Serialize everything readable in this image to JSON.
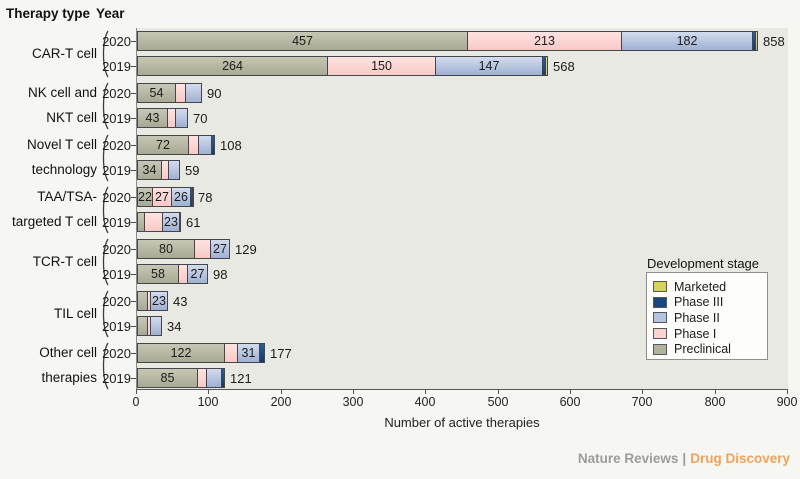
{
  "header": {
    "therapy_type_label": "Therapy type",
    "year_label": "Year"
  },
  "footer": {
    "journal": "Nature Reviews",
    "separator": "|",
    "publication": "Drug Discovery"
  },
  "colors": {
    "page_bg": "#f6f6f2",
    "plot_bg": "#e9e9e4",
    "axis": "#555555",
    "footer_journal": "#9c9c9c",
    "footer_publication": "#f1a35a"
  },
  "chart_data": {
    "type": "bar",
    "orientation": "horizontal-stacked",
    "xlabel": "Number of active therapies",
    "xlim": [
      0,
      900
    ],
    "xticks": [
      0,
      100,
      200,
      300,
      400,
      500,
      600,
      700,
      800,
      900
    ],
    "stage_order": [
      "Preclinical",
      "Phase I",
      "Phase II",
      "Phase III",
      "Marketed"
    ],
    "stage_colors": {
      "Preclinical": {
        "light": "#c7c7b5",
        "dark": "#a8a893"
      },
      "Phase I": {
        "light": "#fee3e1",
        "dark": "#f8c9c6"
      },
      "Phase II": {
        "light": "#d3dcee",
        "dark": "#9fb0d2"
      },
      "Phase III": {
        "light": "#2a5f9c",
        "dark": "#123a68"
      },
      "Marketed": {
        "light": "#e4e26c",
        "dark": "#c6c445"
      }
    },
    "legend": {
      "title": "Development stage",
      "position": "right-inside",
      "entries": [
        {
          "label": "Marketed",
          "color": "#d6d456"
        },
        {
          "label": "Phase III",
          "color": "#17497f"
        },
        {
          "label": "Phase II",
          "color": "#b4c3de"
        },
        {
          "label": "Phase I",
          "color": "#fbd2d0"
        },
        {
          "label": "Preclinical",
          "color": "#b2b29d"
        }
      ]
    },
    "groups": [
      {
        "label_lines": [
          "CAR-T cell"
        ],
        "bars": [
          {
            "year": "2020",
            "total": 858,
            "segments": [
              {
                "stage": "Preclinical",
                "value": 457,
                "label": "457"
              },
              {
                "stage": "Phase I",
                "value": 213,
                "label": "213"
              },
              {
                "stage": "Phase II",
                "value": 182,
                "label": "182"
              },
              {
                "stage": "Phase III",
                "value": 4,
                "label": ""
              },
              {
                "stage": "Marketed",
                "value": 2,
                "label": ""
              }
            ]
          },
          {
            "year": "2019",
            "total": 568,
            "segments": [
              {
                "stage": "Preclinical",
                "value": 264,
                "label": "264"
              },
              {
                "stage": "Phase I",
                "value": 150,
                "label": "150"
              },
              {
                "stage": "Phase II",
                "value": 147,
                "label": "147"
              },
              {
                "stage": "Phase III",
                "value": 5,
                "label": ""
              },
              {
                "stage": "Marketed",
                "value": 2,
                "label": ""
              }
            ]
          }
        ]
      },
      {
        "label_lines": [
          "NK cell and",
          "NKT cell"
        ],
        "bars": [
          {
            "year": "2020",
            "total": 90,
            "segments": [
              {
                "stage": "Preclinical",
                "value": 54,
                "label": "54"
              },
              {
                "stage": "Phase I",
                "value": 14,
                "label": ""
              },
              {
                "stage": "Phase II",
                "value": 22,
                "label": ""
              }
            ]
          },
          {
            "year": "2019",
            "total": 70,
            "segments": [
              {
                "stage": "Preclinical",
                "value": 43,
                "label": "43"
              },
              {
                "stage": "Phase I",
                "value": 11,
                "label": ""
              },
              {
                "stage": "Phase II",
                "value": 16,
                "label": ""
              }
            ]
          }
        ]
      },
      {
        "label_lines": [
          "Novel T cell",
          "technology"
        ],
        "bars": [
          {
            "year": "2020",
            "total": 108,
            "segments": [
              {
                "stage": "Preclinical",
                "value": 72,
                "label": "72"
              },
              {
                "stage": "Phase I",
                "value": 14,
                "label": ""
              },
              {
                "stage": "Phase II",
                "value": 17,
                "label": ""
              },
              {
                "stage": "Phase III",
                "value": 5,
                "label": ""
              }
            ]
          },
          {
            "year": "2019",
            "total": 59,
            "segments": [
              {
                "stage": "Preclinical",
                "value": 34,
                "label": "34"
              },
              {
                "stage": "Phase I",
                "value": 10,
                "label": ""
              },
              {
                "stage": "Phase II",
                "value": 15,
                "label": ""
              }
            ]
          }
        ]
      },
      {
        "label_lines": [
          "TAA/TSA-",
          "targeted T cell"
        ],
        "bars": [
          {
            "year": "2020",
            "total": 78,
            "segments": [
              {
                "stage": "Preclinical",
                "value": 22,
                "label": "22"
              },
              {
                "stage": "Phase I",
                "value": 27,
                "label": "27"
              },
              {
                "stage": "Phase II",
                "value": 26,
                "label": "26"
              },
              {
                "stage": "Phase III",
                "value": 2,
                "label": ""
              },
              {
                "stage": "Marketed",
                "value": 1,
                "label": ""
              }
            ]
          },
          {
            "year": "2019",
            "total": 61,
            "segments": [
              {
                "stage": "Preclinical",
                "value": 11,
                "label": ""
              },
              {
                "stage": "Phase I",
                "value": 25,
                "label": ""
              },
              {
                "stage": "Phase II",
                "value": 23,
                "label": "23"
              },
              {
                "stage": "Phase III",
                "value": 2,
                "label": ""
              }
            ]
          }
        ]
      },
      {
        "label_lines": [
          "TCR-T cell"
        ],
        "bars": [
          {
            "year": "2020",
            "total": 129,
            "segments": [
              {
                "stage": "Preclinical",
                "value": 80,
                "label": "80"
              },
              {
                "stage": "Phase I",
                "value": 22,
                "label": ""
              },
              {
                "stage": "Phase II",
                "value": 27,
                "label": "27"
              }
            ]
          },
          {
            "year": "2019",
            "total": 98,
            "segments": [
              {
                "stage": "Preclinical",
                "value": 58,
                "label": "58"
              },
              {
                "stage": "Phase I",
                "value": 13,
                "label": ""
              },
              {
                "stage": "Phase II",
                "value": 27,
                "label": "27"
              }
            ]
          }
        ]
      },
      {
        "label_lines": [
          "TIL cell"
        ],
        "bars": [
          {
            "year": "2020",
            "total": 43,
            "segments": [
              {
                "stage": "Preclinical",
                "value": 15,
                "label": ""
              },
              {
                "stage": "Phase I",
                "value": 5,
                "label": ""
              },
              {
                "stage": "Phase II",
                "value": 23,
                "label": "23"
              }
            ]
          },
          {
            "year": "2019",
            "total": 34,
            "segments": [
              {
                "stage": "Preclinical",
                "value": 15,
                "label": ""
              },
              {
                "stage": "Phase I",
                "value": 5,
                "label": ""
              },
              {
                "stage": "Phase II",
                "value": 14,
                "label": ""
              }
            ]
          }
        ]
      },
      {
        "label_lines": [
          "Other cell",
          "therapies"
        ],
        "bars": [
          {
            "year": "2020",
            "total": 177,
            "segments": [
              {
                "stage": "Preclinical",
                "value": 122,
                "label": "122"
              },
              {
                "stage": "Phase I",
                "value": 17,
                "label": ""
              },
              {
                "stage": "Phase II",
                "value": 31,
                "label": "31"
              },
              {
                "stage": "Phase III",
                "value": 7,
                "label": ""
              }
            ]
          },
          {
            "year": "2019",
            "total": 121,
            "segments": [
              {
                "stage": "Preclinical",
                "value": 85,
                "label": "85"
              },
              {
                "stage": "Phase I",
                "value": 12,
                "label": ""
              },
              {
                "stage": "Phase II",
                "value": 20,
                "label": ""
              },
              {
                "stage": "Phase III",
                "value": 4,
                "label": ""
              }
            ]
          }
        ]
      }
    ]
  }
}
